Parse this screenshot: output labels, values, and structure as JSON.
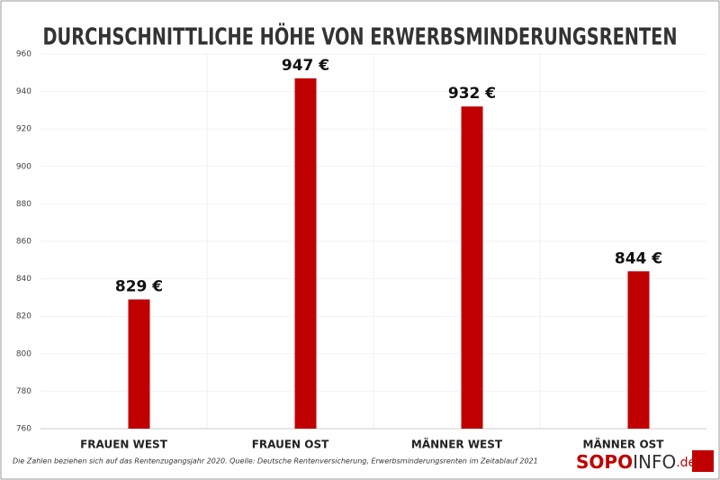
{
  "chart_data": {
    "type": "bar",
    "title": "DURCHSCHNITTLICHE HÖHE VON ERWERBSMINDERUNGSRENTEN",
    "categories": [
      "FRAUEN WEST",
      "FRAUEN OST",
      "MÄNNER WEST",
      "MÄNNER OST"
    ],
    "values": [
      829,
      947,
      932,
      844
    ],
    "value_labels": [
      "829 €",
      "947 €",
      "932 €",
      "844 €"
    ],
    "color": "#c00000",
    "ylim": [
      760,
      960
    ],
    "yticks": [
      760,
      780,
      800,
      820,
      840,
      860,
      880,
      900,
      920,
      940,
      960
    ],
    "grid": true,
    "note": "Die Zahlen beziehen sich auf das Rentenzugangsjahr 2020. Quelle: Deutsche Rentenversicherung, Erwerbsminderungsrenten im Zeitablauf 2021",
    "logo": [
      "SOPO",
      "INFO",
      ".de"
    ]
  }
}
